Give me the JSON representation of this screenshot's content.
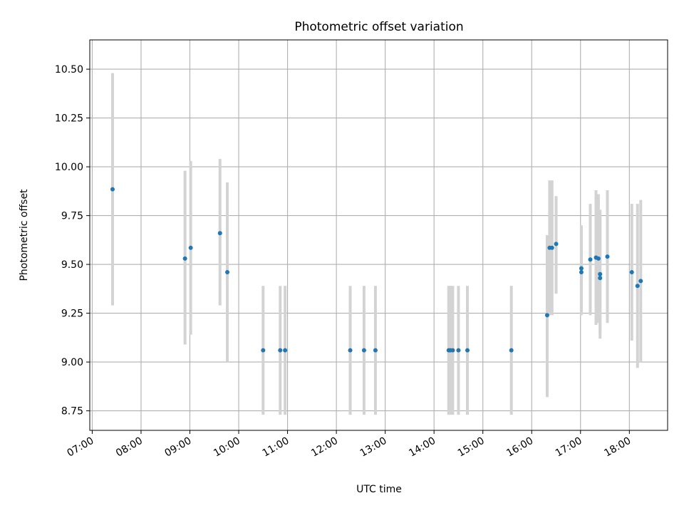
{
  "chart_data": {
    "type": "scatter",
    "title": "Photometric offset variation",
    "xlabel": "UTC time",
    "ylabel": "Photometric offset",
    "x_axis_type": "time",
    "xlim": [
      "06:57",
      "18:47"
    ],
    "ylim": [
      8.65,
      10.65
    ],
    "x_ticks": [
      "07:00",
      "08:00",
      "09:00",
      "10:00",
      "11:00",
      "12:00",
      "13:00",
      "14:00",
      "15:00",
      "16:00",
      "17:00",
      "18:00"
    ],
    "y_ticks": [
      "8.75",
      "9.00",
      "9.25",
      "9.50",
      "9.75",
      "10.00",
      "10.25",
      "10.50"
    ],
    "grid": true,
    "marker_color": "#1f77b4",
    "errorbar_color": "#d3d3d3",
    "points": [
      {
        "x": "07:25",
        "y": 9.885,
        "low": 9.29,
        "high": 10.48
      },
      {
        "x": "08:54",
        "y": 9.53,
        "low": 9.09,
        "high": 9.98
      },
      {
        "x": "09:01",
        "y": 9.585,
        "low": 9.14,
        "high": 10.03
      },
      {
        "x": "09:37",
        "y": 9.66,
        "low": 9.29,
        "high": 10.04
      },
      {
        "x": "09:46",
        "y": 9.46,
        "low": 9.0,
        "high": 9.92
      },
      {
        "x": "10:30",
        "y": 9.06,
        "low": 8.73,
        "high": 9.39
      },
      {
        "x": "10:51",
        "y": 9.06,
        "low": 8.73,
        "high": 9.39
      },
      {
        "x": "10:57",
        "y": 9.06,
        "low": 8.73,
        "high": 9.39
      },
      {
        "x": "12:17",
        "y": 9.06,
        "low": 8.73,
        "high": 9.39
      },
      {
        "x": "12:34",
        "y": 9.06,
        "low": 8.73,
        "high": 9.39
      },
      {
        "x": "12:48",
        "y": 9.06,
        "low": 8.73,
        "high": 9.39
      },
      {
        "x": "14:18",
        "y": 9.06,
        "low": 8.73,
        "high": 9.39
      },
      {
        "x": "14:20",
        "y": 9.06,
        "low": 8.73,
        "high": 9.39
      },
      {
        "x": "14:23",
        "y": 9.06,
        "low": 8.73,
        "high": 9.39
      },
      {
        "x": "14:30",
        "y": 9.06,
        "low": 8.73,
        "high": 9.39
      },
      {
        "x": "14:41",
        "y": 9.06,
        "low": 8.73,
        "high": 9.39
      },
      {
        "x": "15:35",
        "y": 9.06,
        "low": 8.73,
        "high": 9.39
      },
      {
        "x": "16:19",
        "y": 9.24,
        "low": 8.82,
        "high": 9.65
      },
      {
        "x": "16:22",
        "y": 9.585,
        "low": 9.24,
        "high": 9.93
      },
      {
        "x": "16:25",
        "y": 9.585,
        "low": 9.24,
        "high": 9.93
      },
      {
        "x": "16:30",
        "y": 9.605,
        "low": 9.35,
        "high": 9.85
      },
      {
        "x": "17:01",
        "y": 9.48,
        "low": 9.25,
        "high": 9.7
      },
      {
        "x": "17:01",
        "y": 9.46,
        "low": 9.24,
        "high": 9.68
      },
      {
        "x": "17:12",
        "y": 9.525,
        "low": 9.24,
        "high": 9.81
      },
      {
        "x": "17:19",
        "y": 9.535,
        "low": 9.19,
        "high": 9.88
      },
      {
        "x": "17:22",
        "y": 9.53,
        "low": 9.2,
        "high": 9.86
      },
      {
        "x": "17:24",
        "y": 9.43,
        "low": 9.12,
        "high": 9.78
      },
      {
        "x": "17:24",
        "y": 9.45,
        "low": 9.15,
        "high": 9.75
      },
      {
        "x": "17:33",
        "y": 9.54,
        "low": 9.2,
        "high": 9.88
      },
      {
        "x": "18:03",
        "y": 9.46,
        "low": 9.11,
        "high": 9.81
      },
      {
        "x": "18:10",
        "y": 9.39,
        "low": 8.97,
        "high": 9.81
      },
      {
        "x": "18:14",
        "y": 9.415,
        "low": 9.0,
        "high": 9.83
      }
    ]
  }
}
